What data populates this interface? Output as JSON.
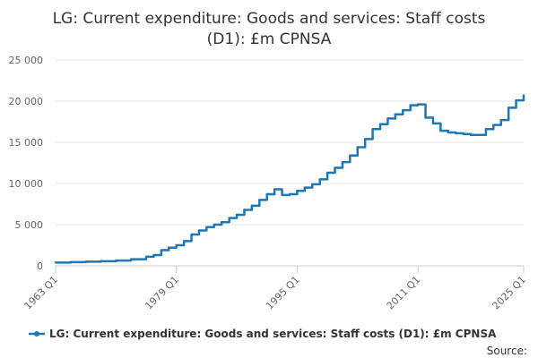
{
  "chart_data": {
    "type": "line",
    "title_line1": "LG: Current expenditure: Goods and services: Staff costs",
    "title_line2": "(D1): £m CPNSA",
    "xlabel": "",
    "ylabel": "",
    "ylim": [
      0,
      25000
    ],
    "yticks": [
      0,
      5000,
      10000,
      15000,
      20000,
      25000
    ],
    "ytick_labels": [
      "0",
      "5 000",
      "10 000",
      "15 000",
      "20 000",
      "25 000"
    ],
    "xlim": [
      1963,
      2025
    ],
    "xticks": [
      1963,
      1979,
      1995,
      2011,
      2025
    ],
    "xtick_labels": [
      "1963 Q1",
      "1979 Q1",
      "1995 Q1",
      "2011 Q1",
      "2025 Q1"
    ],
    "grid": true,
    "legend_position": "bottom",
    "color": "#1f77b4",
    "series": [
      {
        "name": "LG: Current expenditure: Goods and services: Staff costs (D1): £m CPNSA",
        "points": [
          [
            1963,
            400
          ],
          [
            1965,
            450
          ],
          [
            1967,
            500
          ],
          [
            1969,
            560
          ],
          [
            1971,
            640
          ],
          [
            1973,
            800
          ],
          [
            1975,
            1100
          ],
          [
            1976,
            1300
          ],
          [
            1977,
            1900
          ],
          [
            1978,
            2200
          ],
          [
            1979,
            2500
          ],
          [
            1980,
            3000
          ],
          [
            1981,
            3800
          ],
          [
            1982,
            4300
          ],
          [
            1983,
            4700
          ],
          [
            1984,
            5000
          ],
          [
            1985,
            5300
          ],
          [
            1986,
            5800
          ],
          [
            1987,
            6200
          ],
          [
            1988,
            6800
          ],
          [
            1989,
            7300
          ],
          [
            1990,
            8000
          ],
          [
            1991,
            8700
          ],
          [
            1992,
            9300
          ],
          [
            1993,
            8600
          ],
          [
            1994,
            8700
          ],
          [
            1995,
            9100
          ],
          [
            1996,
            9500
          ],
          [
            1997,
            9900
          ],
          [
            1998,
            10500
          ],
          [
            1999,
            11300
          ],
          [
            2000,
            11900
          ],
          [
            2001,
            12600
          ],
          [
            2002,
            13400
          ],
          [
            2003,
            14400
          ],
          [
            2004,
            15400
          ],
          [
            2005,
            16600
          ],
          [
            2006,
            17200
          ],
          [
            2007,
            17900
          ],
          [
            2008,
            18400
          ],
          [
            2009,
            18900
          ],
          [
            2010,
            19500
          ],
          [
            2011,
            19600
          ],
          [
            2012,
            18000
          ],
          [
            2013,
            17300
          ],
          [
            2014,
            16400
          ],
          [
            2015,
            16200
          ],
          [
            2016,
            16100
          ],
          [
            2017,
            16000
          ],
          [
            2018,
            15900
          ],
          [
            2019,
            15900
          ],
          [
            2020,
            16600
          ],
          [
            2021,
            17100
          ],
          [
            2022,
            17700
          ],
          [
            2023,
            19200
          ],
          [
            2024,
            20100
          ],
          [
            2025,
            20700
          ]
        ]
      }
    ],
    "source_label": "Source:"
  }
}
